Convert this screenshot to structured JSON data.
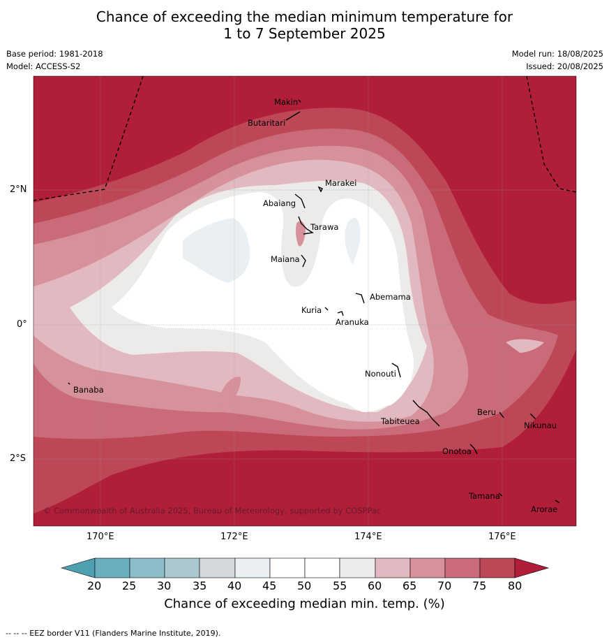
{
  "title_line1": "Chance of exceeding the median minimum temperature for",
  "title_line2": "1 to 7 September 2025",
  "base_period": "Base period: 1981-2018",
  "model": "Model: ACCESS-S2",
  "model_run": "Model run: 18/08/2025",
  "issued": "Issued: 20/08/2025",
  "lat_labels": [
    "2°N",
    "0°",
    "2°S"
  ],
  "lon_labels": [
    "170°E",
    "172°E",
    "174°E",
    "176°E"
  ],
  "places": [
    "Makin",
    "Butaritari",
    "Marakei",
    "Abaiang",
    "Tarawa",
    "Maiana",
    "Abemama",
    "Kuria",
    "Aranuka",
    "Nonouti",
    "Banaba",
    "Beru",
    "Nikunau",
    "Tabiteuea",
    "Onotoa",
    "Tamana",
    "Arorae"
  ],
  "copyright": "© Commonwealth of Australia 2025, Bureau of Meteorology, supported by COSPPac",
  "colorbar": {
    "ticks": [
      "20",
      "25",
      "30",
      "35",
      "40",
      "45",
      "50",
      "55",
      "60",
      "65",
      "70",
      "75",
      "80"
    ],
    "colors": [
      "#4fa0b0",
      "#6aafbf",
      "#8cbcc7",
      "#aac8cd",
      "#d3d9dc",
      "#e9eff2",
      "#ffffff",
      "#ffffff",
      "#ecebe9",
      "#e2b9c0",
      "#d6919b",
      "#c96b78",
      "#bd4757",
      "#b01e3a"
    ],
    "title": "Chance of exceeding median min. temp. (%)"
  },
  "footer": "--  --  -- EEZ border V11 (Flanders Marine Institute, 2019)."
}
